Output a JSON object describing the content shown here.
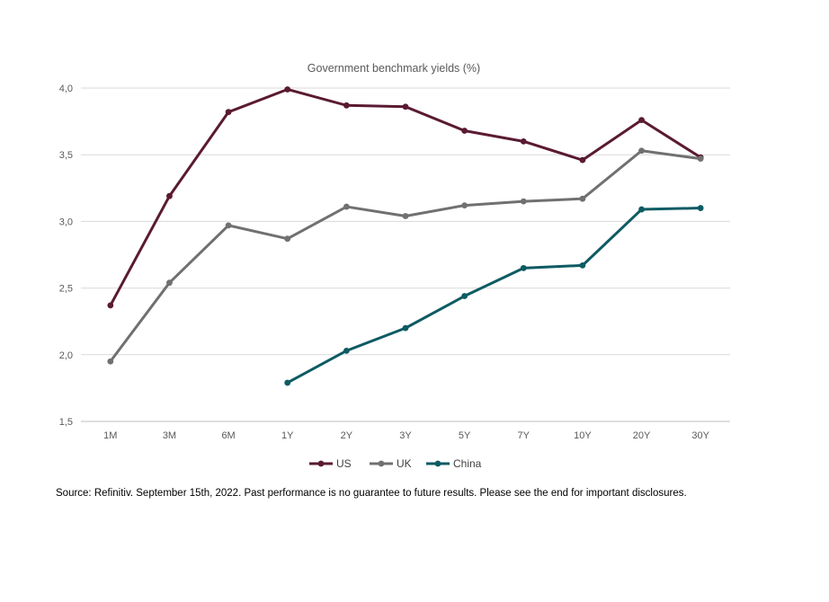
{
  "chart_data": {
    "type": "line",
    "title": "Government benchmark yields (%)",
    "xlabel": "",
    "ylabel": "",
    "categories": [
      "1M",
      "3M",
      "6M",
      "1Y",
      "2Y",
      "3Y",
      "5Y",
      "7Y",
      "10Y",
      "20Y",
      "30Y"
    ],
    "ylim": [
      1.5,
      4.0
    ],
    "yticks": [
      1.5,
      2.0,
      2.5,
      3.0,
      3.5,
      4.0
    ],
    "ytick_labels": [
      "1,5",
      "2,0",
      "2,5",
      "3,0",
      "3,5",
      "4,0"
    ],
    "grid": true,
    "legend_position": "bottom",
    "series": [
      {
        "name": "US",
        "color": "#5a1a32",
        "values": [
          2.37,
          3.19,
          3.82,
          3.99,
          3.87,
          3.86,
          3.68,
          3.6,
          3.46,
          3.76,
          3.48
        ]
      },
      {
        "name": "UK",
        "color": "#707070",
        "values": [
          1.95,
          2.54,
          2.97,
          2.87,
          3.11,
          3.04,
          3.12,
          3.15,
          3.17,
          3.53,
          3.47
        ]
      },
      {
        "name": "China",
        "color": "#0e5b63",
        "values": [
          null,
          null,
          null,
          1.79,
          2.03,
          2.2,
          2.44,
          2.65,
          2.67,
          3.09,
          3.1
        ]
      }
    ]
  },
  "footer": {
    "source": "Source: Refinitiv. September 15th, 2022. Past performance is no guarantee to future results. Please see the end for important disclosures."
  }
}
